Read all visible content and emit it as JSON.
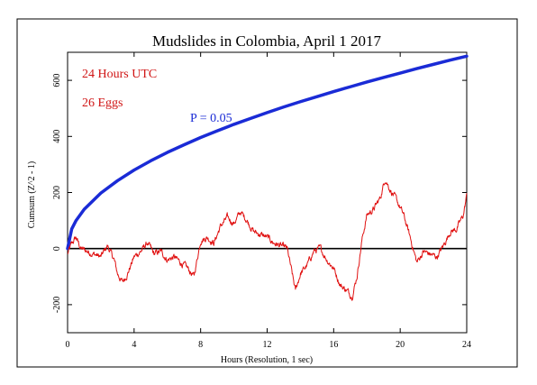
{
  "chart_data": {
    "type": "line",
    "title": "Mudslides in Colombia, April 1 2017",
    "xlabel": "Hours (Resolution, 1 sec)",
    "ylabel": "Cumsum (Z^2 - 1)",
    "xlim": [
      0,
      24
    ],
    "ylim": [
      -300,
      700
    ],
    "x_ticks": [
      0,
      4,
      8,
      12,
      16,
      20,
      24
    ],
    "y_ticks": [
      -200,
      0,
      200,
      400,
      600
    ],
    "annotations": {
      "duration": "24 Hours UTC",
      "eggs": "26 Eggs",
      "probability": "P = 0.05"
    },
    "colors": {
      "cumsum": "#e01010",
      "probability": "#1a2bd6",
      "annotation_text": "#d01515",
      "frame": "#000000"
    },
    "series": [
      {
        "name": "P = 0.05",
        "x": [
          0,
          0.25,
          0.5,
          1,
          2,
          3,
          4,
          5,
          6,
          7,
          8,
          9,
          10,
          11,
          12,
          13,
          14,
          15,
          16,
          17,
          18,
          19,
          20,
          21,
          22,
          23,
          24
        ],
        "values": [
          0,
          70,
          99,
          140,
          198,
          242,
          280,
          313,
          343,
          370,
          396,
          420,
          443,
          464,
          485,
          505,
          524,
          542,
          560,
          577,
          594,
          610,
          626,
          642,
          657,
          672,
          686
        ]
      },
      {
        "name": "",
        "x": [
          0,
          0.2,
          0.5,
          0.8,
          1.2,
          1.6,
          2.0,
          2.4,
          2.8,
          3.0,
          3.3,
          3.6,
          4.0,
          4.4,
          4.8,
          5.2,
          5.6,
          6.0,
          6.4,
          6.8,
          7.2,
          7.6,
          8.0,
          8.4,
          8.8,
          9.2,
          9.6,
          10.0,
          10.4,
          10.8,
          11.2,
          11.6,
          12.0,
          12.4,
          12.8,
          13.2,
          13.4,
          13.7,
          14.0,
          14.4,
          14.8,
          15.2,
          15.6,
          16.0,
          16.4,
          16.8,
          17.1,
          17.4,
          17.7,
          18.0,
          18.4,
          18.8,
          19.1,
          19.4,
          19.8,
          20.2,
          20.6,
          21.0,
          21.4,
          21.8,
          22.2,
          22.6,
          23.0,
          23.4,
          23.8,
          24.0
        ],
        "values": [
          -20,
          10,
          40,
          0,
          -10,
          -20,
          -30,
          10,
          -40,
          -90,
          -120,
          -90,
          -30,
          -10,
          20,
          -20,
          -10,
          -40,
          -30,
          -50,
          -70,
          -100,
          30,
          40,
          20,
          80,
          110,
          90,
          130,
          100,
          60,
          50,
          40,
          20,
          10,
          0,
          -60,
          -150,
          -90,
          -60,
          -10,
          0,
          -40,
          -70,
          -130,
          -150,
          -170,
          -100,
          30,
          120,
          140,
          180,
          250,
          210,
          170,
          120,
          40,
          -50,
          -10,
          -20,
          -30,
          10,
          60,
          70,
          120,
          190
        ]
      }
    ]
  }
}
